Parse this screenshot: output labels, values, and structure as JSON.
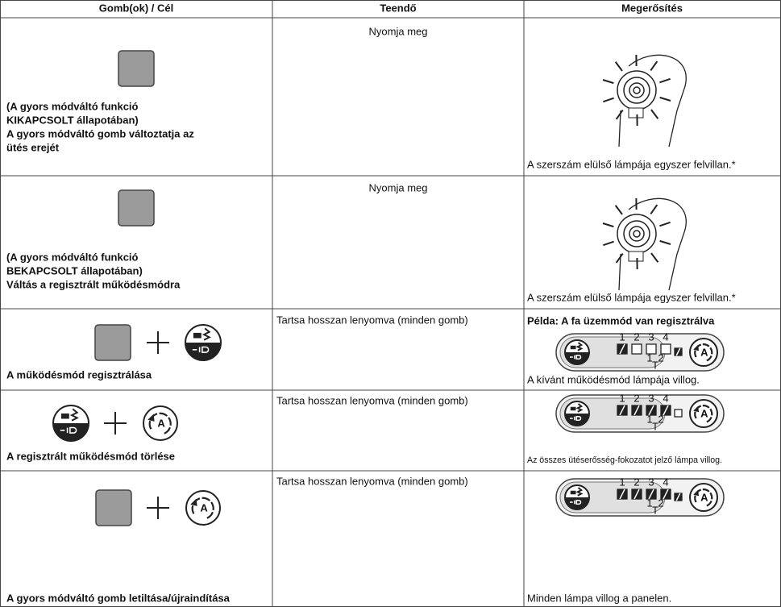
{
  "header": [
    "Gomb(ok) / Cél",
    "Teendő",
    "Megerősítés"
  ],
  "rows": [
    {
      "target_lines": [
        "(A gyors módváltó funkció",
        "KIKAPCSOLT állapotában)",
        "A gyors módváltó gomb változtatja az",
        "ütés erejét"
      ],
      "action": "Nyomja meg",
      "confirmation_caption": "A szerszám elülső lámpája egyszer felvillan.*"
    },
    {
      "target_lines": [
        "(A gyors módváltó funkció",
        "BEKAPCSOLT állapotában)",
        "Váltás a regisztrált működésmódra"
      ],
      "action": "Nyomja meg",
      "confirmation_caption": "A szerszám elülső lámpája egyszer felvillan.*"
    },
    {
      "target_lines": [
        "A működésmód regisztrálása"
      ],
      "action": "Tartsa hosszan lenyomva (minden gomb)",
      "confirmation_title": "Példa: A fa üzemmód van regisztrálva",
      "confirmation_caption": "A kívánt működésmód lámpája villog."
    },
    {
      "target_lines": [
        "A regisztrált működésmód törlése"
      ],
      "action": "Tartsa hosszan lenyomva (minden gomb)",
      "confirmation_caption": "Az összes ütéserősség-fokozatot jelző lámpa villog."
    },
    {
      "target_lines": [
        "A gyors módváltó gomb letiltása/újraindítása"
      ],
      "action": "Tartsa hosszan lenyomva (minden gomb)",
      "confirmation_caption": "Minden lámpa villog a panelen."
    }
  ],
  "panel_labels": {
    "levels": [
      "1",
      "2",
      "3",
      "4"
    ],
    "modes": [
      "1",
      "2"
    ],
    "t": "T",
    "auto": "A"
  }
}
